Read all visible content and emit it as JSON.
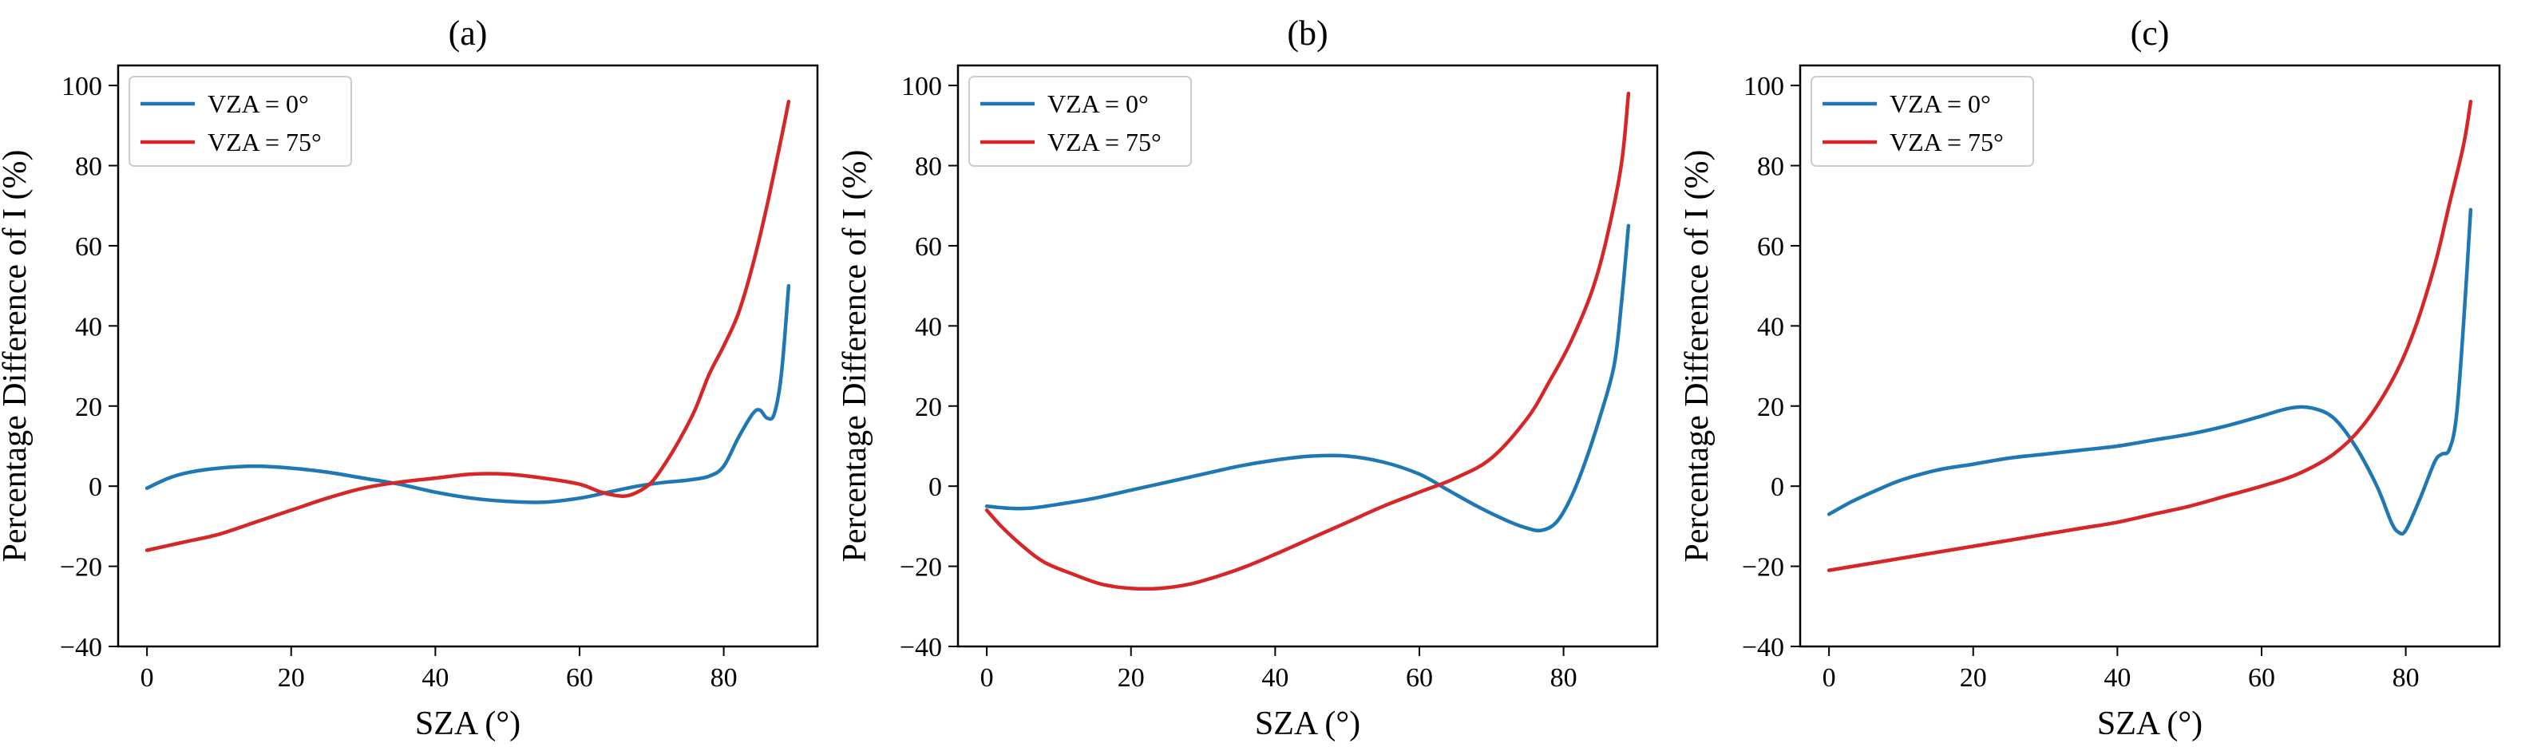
{
  "chart_data": [
    {
      "type": "line",
      "title": "(a)",
      "xlabel": "SZA (°)",
      "ylabel": "Percentage Difference of I (%)",
      "xlim": [
        -4,
        93
      ],
      "ylim": [
        -40,
        105
      ],
      "xticks": [
        0,
        20,
        40,
        60,
        80
      ],
      "yticks": [
        -40,
        -20,
        0,
        20,
        40,
        60,
        80,
        100
      ],
      "legend": "top-left",
      "series": [
        {
          "name": "VZA = 0°",
          "color": "#1f77b4",
          "x": [
            0,
            3,
            6,
            10,
            15,
            20,
            25,
            30,
            35,
            40,
            45,
            50,
            55,
            60,
            64,
            68,
            72,
            75,
            78,
            80,
            82,
            84,
            85,
            86,
            87,
            88,
            89
          ],
          "y": [
            -0.5,
            2,
            3.5,
            4.5,
            5,
            4.5,
            3.5,
            2,
            0.5,
            -1.5,
            -3,
            -3.8,
            -4,
            -3,
            -1.5,
            0,
            1,
            1.5,
            2.5,
            5,
            12,
            18,
            19,
            17,
            18,
            28,
            50
          ]
        },
        {
          "name": "VZA = 75°",
          "color": "#d62728",
          "x": [
            0,
            5,
            10,
            15,
            20,
            25,
            30,
            35,
            40,
            45,
            50,
            55,
            60,
            63,
            66,
            68,
            70,
            72,
            74,
            76,
            78,
            80,
            82,
            84,
            86,
            88,
            89
          ],
          "y": [
            -16,
            -14,
            -12,
            -9,
            -6,
            -3,
            -0.5,
            1,
            2,
            3,
            3,
            2,
            0.5,
            -1.5,
            -2.5,
            -1.5,
            1,
            6,
            12,
            19,
            28,
            35,
            43,
            55,
            70,
            87,
            96
          ]
        }
      ]
    },
    {
      "type": "line",
      "title": "(b)",
      "xlabel": "SZA (°)",
      "ylabel": "Percentage Difference of I (%)",
      "xlim": [
        -4,
        93
      ],
      "ylim": [
        -40,
        105
      ],
      "xticks": [
        0,
        20,
        40,
        60,
        80
      ],
      "yticks": [
        -40,
        -20,
        0,
        20,
        40,
        60,
        80,
        100
      ],
      "legend": "top-left",
      "series": [
        {
          "name": "VZA = 0°",
          "color": "#1f77b4",
          "x": [
            0,
            3,
            6,
            10,
            15,
            20,
            25,
            30,
            35,
            40,
            45,
            50,
            55,
            60,
            64,
            68,
            72,
            75,
            77,
            79,
            81,
            83,
            85,
            87,
            88,
            89
          ],
          "y": [
            -5,
            -5.5,
            -5.5,
            -4.5,
            -3,
            -1,
            1,
            3,
            5,
            6.5,
            7.5,
            7.5,
            6,
            3,
            -1,
            -5,
            -8.5,
            -10.5,
            -11,
            -9,
            -3,
            6,
            17,
            30,
            45,
            65
          ]
        },
        {
          "name": "VZA = 75°",
          "color": "#d62728",
          "x": [
            0,
            2,
            5,
            8,
            12,
            16,
            20,
            24,
            28,
            32,
            36,
            40,
            45,
            50,
            55,
            60,
            65,
            70,
            75,
            78,
            81,
            84,
            86,
            88,
            89
          ],
          "y": [
            -6,
            -10,
            -15,
            -19,
            -22,
            -24.5,
            -25.5,
            -25.5,
            -24.5,
            -22.5,
            -20,
            -17,
            -13,
            -9,
            -5,
            -1.5,
            2,
            7,
            17,
            26,
            36,
            49,
            62,
            80,
            98
          ]
        }
      ]
    },
    {
      "type": "line",
      "title": "(c)",
      "xlabel": "SZA (°)",
      "ylabel": "Percentage Difference of I (%)",
      "xlim": [
        -4,
        93
      ],
      "ylim": [
        -40,
        105
      ],
      "xticks": [
        0,
        20,
        40,
        60,
        80
      ],
      "yticks": [
        -40,
        -20,
        0,
        20,
        40,
        60,
        80,
        100
      ],
      "legend": "top-left",
      "series": [
        {
          "name": "VZA = 0°",
          "color": "#1f77b4",
          "x": [
            0,
            3,
            6,
            10,
            15,
            20,
            25,
            30,
            35,
            40,
            45,
            50,
            55,
            60,
            64,
            67,
            70,
            73,
            76,
            78,
            79,
            80,
            82,
            84,
            85,
            86,
            87,
            88,
            89
          ],
          "y": [
            -7,
            -4,
            -1.5,
            1.5,
            4,
            5.5,
            7,
            8,
            9,
            10,
            11.5,
            13,
            15,
            17.5,
            19.5,
            19.5,
            17,
            10,
            0,
            -9,
            -11.5,
            -11,
            -3,
            6,
            8,
            9,
            17,
            40,
            69
          ]
        },
        {
          "name": "VZA = 75°",
          "color": "#d62728",
          "x": [
            0,
            5,
            10,
            15,
            20,
            25,
            30,
            35,
            40,
            45,
            50,
            55,
            60,
            65,
            70,
            74,
            78,
            81,
            84,
            86,
            88,
            89
          ],
          "y": [
            -21,
            -19.5,
            -18,
            -16.5,
            -15,
            -13.5,
            -12,
            -10.5,
            -9,
            -7,
            -5,
            -2.5,
            0,
            3,
            8,
            15,
            26,
            38,
            55,
            70,
            85,
            96
          ]
        }
      ]
    }
  ]
}
